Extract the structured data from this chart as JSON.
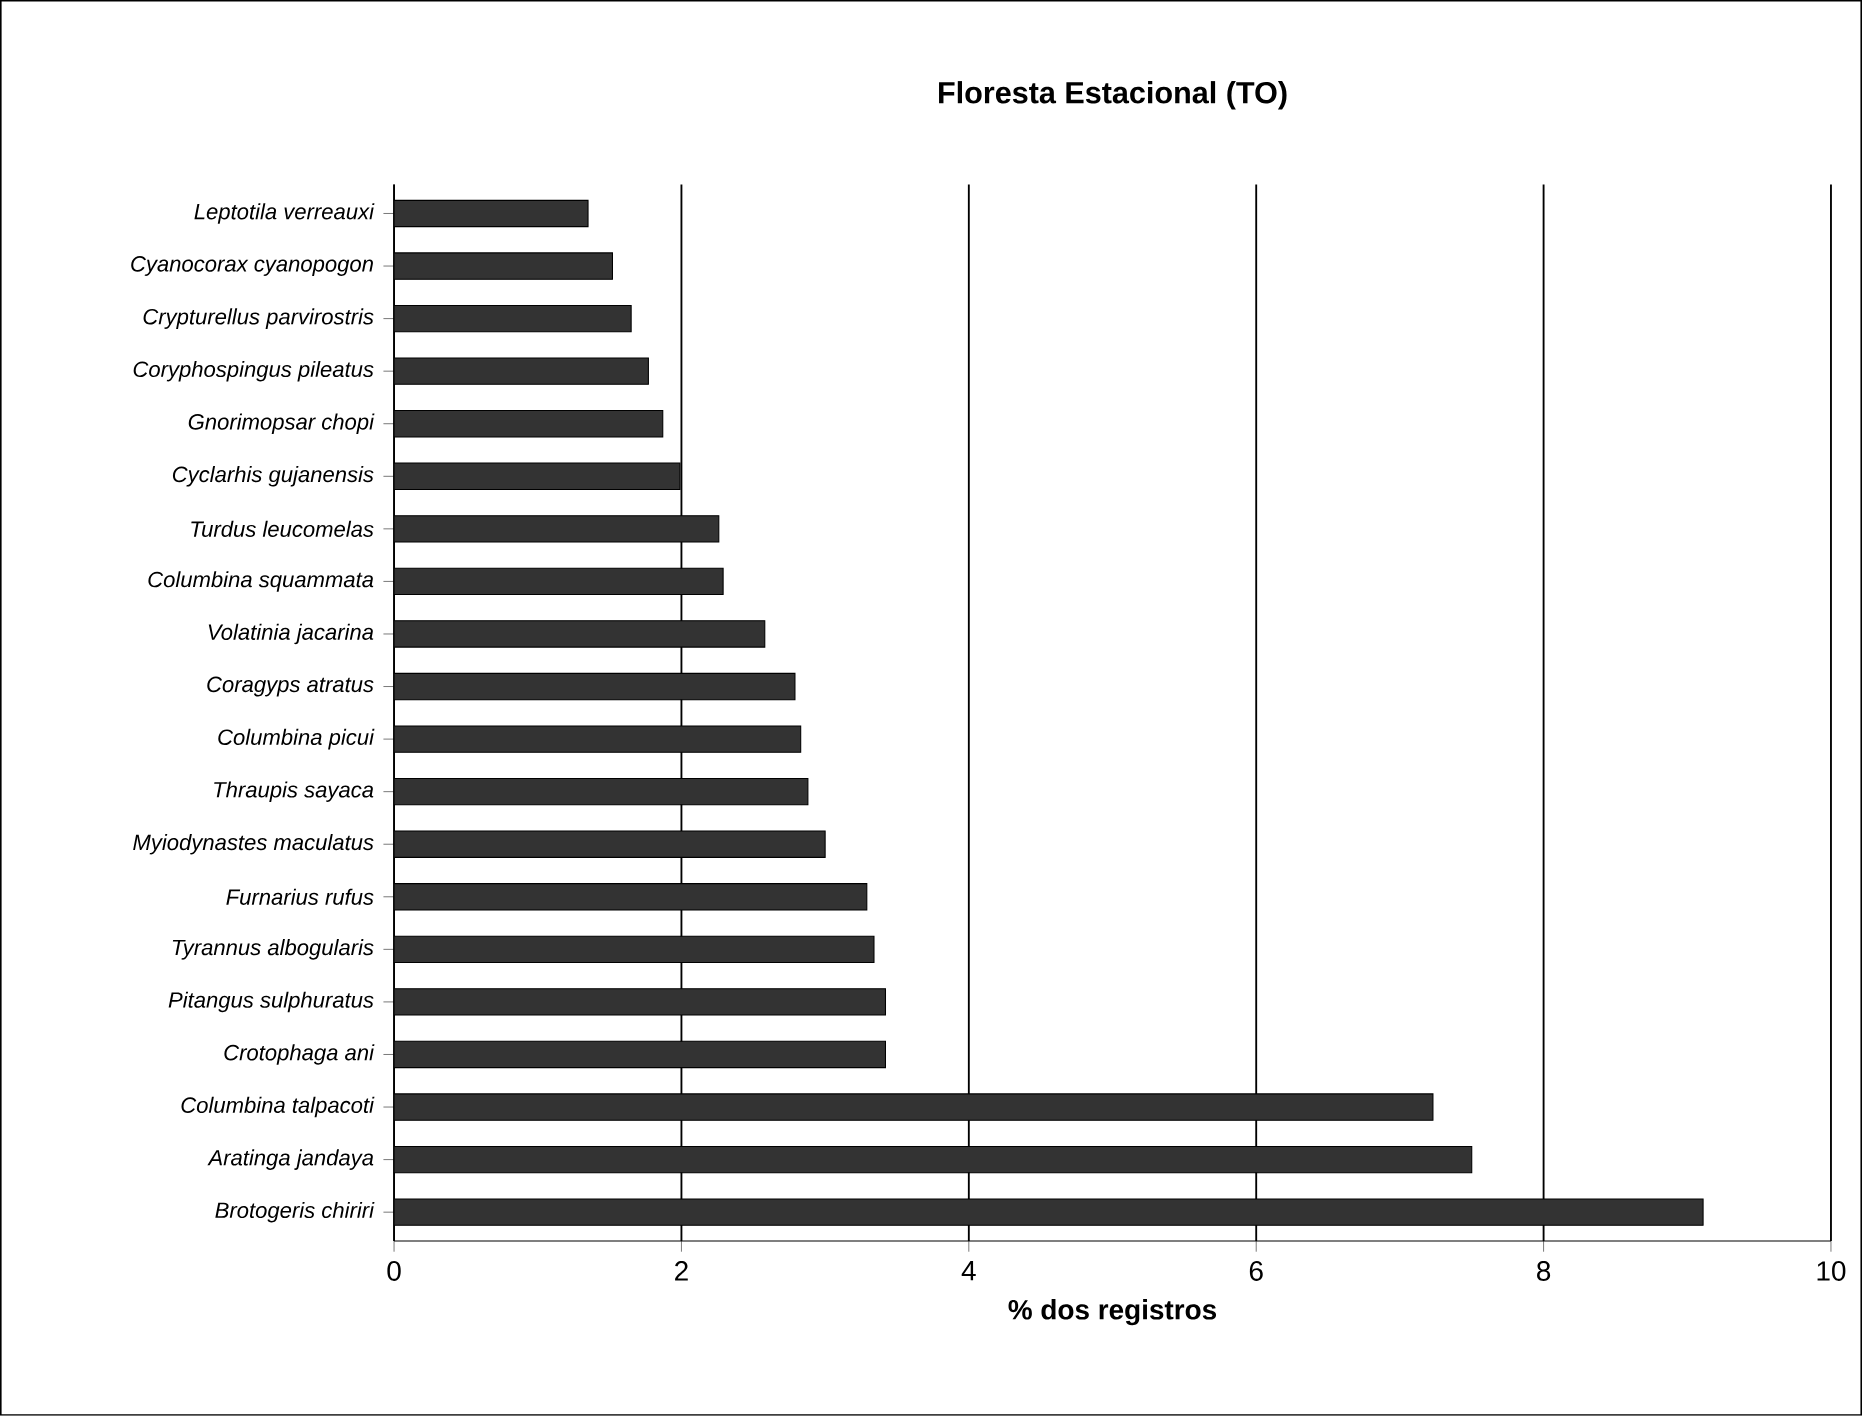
{
  "chart_data": {
    "type": "bar",
    "orientation": "horizontal",
    "title": "Floresta Estacional (TO)",
    "xlabel": "% dos registros",
    "categories": [
      "Leptotila verreauxi",
      "Cyanocorax cyanopogon",
      "Crypturellus parvirostris",
      "Coryphospingus pileatus",
      "Gnorimopsar chopi",
      "Cyclarhis gujanensis",
      "Turdus leucomelas",
      "Columbina squammata",
      "Volatinia jacarina",
      "Coragyps atratus",
      "Columbina picui",
      "Thraupis sayaca",
      "Myiodynastes maculatus",
      "Furnarius rufus",
      "Tyrannus albogularis",
      "Pitangus sulphuratus",
      "Crotophaga ani",
      "Columbina talpacoti",
      "Aratinga jandaya",
      "Brotogeris chiriri"
    ],
    "values": [
      1.35,
      1.52,
      1.65,
      1.77,
      1.87,
      1.99,
      2.26,
      2.29,
      2.58,
      2.79,
      2.83,
      2.88,
      3.0,
      3.29,
      3.34,
      3.42,
      3.42,
      7.23,
      7.5,
      9.11
    ],
    "color": "#333333",
    "xlim": [
      0,
      10
    ],
    "xticks": [
      0,
      2,
      4,
      6,
      8,
      10
    ],
    "grid": "x"
  }
}
